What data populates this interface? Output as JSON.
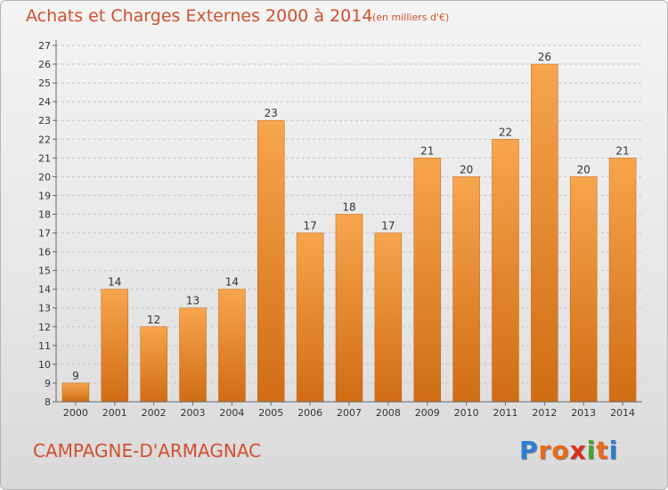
{
  "title": "Achats et Charges Externes 2000 à 2014",
  "unit": "(en milliers d'€)",
  "commune": "CAMPAGNE-D'ARMAGNAC",
  "logo": {
    "letters": [
      "P",
      "r",
      "o",
      "x",
      "i",
      "t",
      "i"
    ],
    "colors": [
      "#2a7fd4",
      "#e86b1a",
      "#e86b1a",
      "#d8301f",
      "#4ba52b",
      "#e86b1a",
      "#2a7fd4"
    ]
  },
  "colors": {
    "bar_light": "#f7a54e",
    "bar_dark": "#d06d14",
    "title": "#d2502d",
    "grid": "#c8c8c8"
  },
  "chart_data": {
    "type": "bar",
    "categories": [
      "2000",
      "2001",
      "2002",
      "2003",
      "2004",
      "2005",
      "2006",
      "2007",
      "2008",
      "2009",
      "2010",
      "2011",
      "2012",
      "2013",
      "2014"
    ],
    "values": [
      9,
      14,
      12,
      13,
      14,
      23,
      17,
      18,
      17,
      21,
      20,
      22,
      26,
      20,
      21
    ],
    "title": "Achats et Charges Externes 2000 à 2014",
    "ylim": [
      8,
      27
    ],
    "yticks": [
      8,
      9,
      10,
      11,
      12,
      13,
      14,
      15,
      16,
      17,
      18,
      19,
      20,
      21,
      22,
      23,
      24,
      25,
      26,
      27
    ],
    "grid": true,
    "xlabel": "",
    "ylabel": ""
  }
}
